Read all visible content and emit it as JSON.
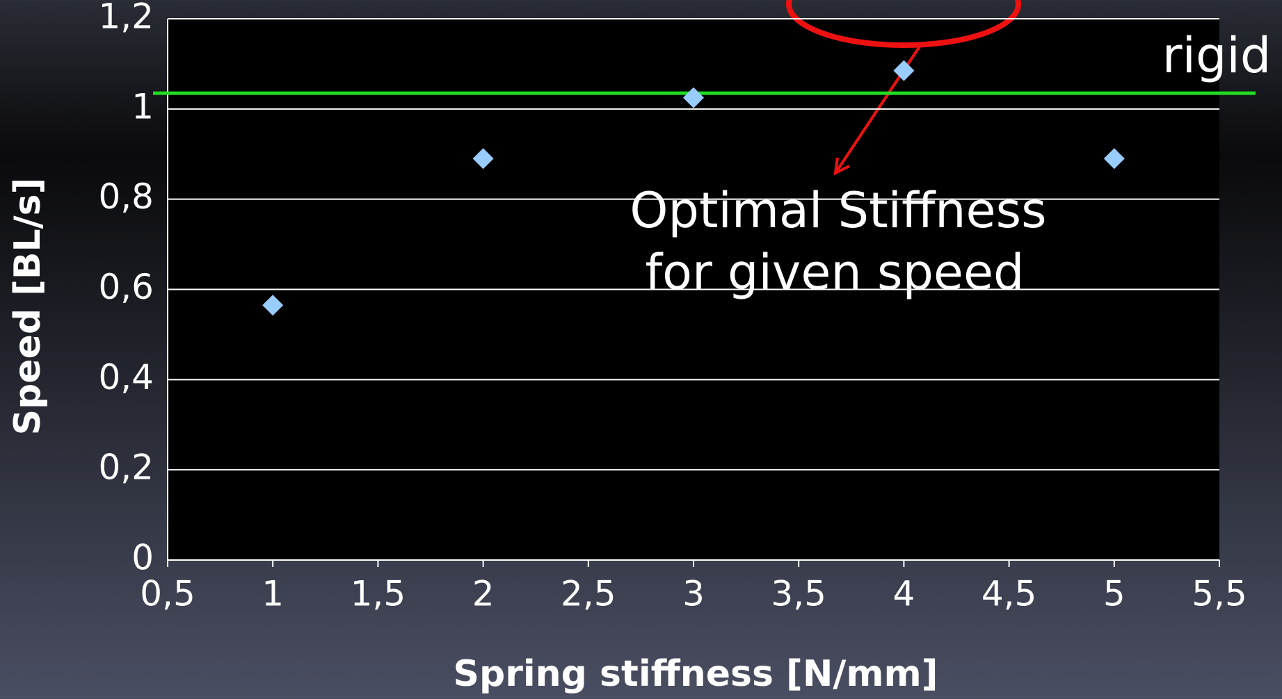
{
  "chart_data": {
    "type": "scatter",
    "xlabel": "Spring stiffness [N/mm]",
    "ylabel": "Speed [BL/s]",
    "x": [
      1,
      2,
      3,
      4,
      5
    ],
    "values": [
      0.565,
      0.89,
      1.025,
      1.085,
      0.89
    ],
    "color": "#99ccff",
    "xlim": [
      0.5,
      5.5
    ],
    "xticks": [
      {
        "value": 0.5,
        "label": "0,5"
      },
      1,
      {
        "value": 1.5,
        "label": "1,5"
      },
      2,
      {
        "value": 2.5,
        "label": "2,5"
      },
      3,
      {
        "value": 3.5,
        "label": "3,5"
      },
      4,
      {
        "value": 4.5,
        "label": "4,5"
      },
      5,
      {
        "value": 5.5,
        "label": "5,5"
      }
    ],
    "ylim": [
      0,
      1.2
    ],
    "yticks": [
      0,
      {
        "value": 0.2,
        "label": "0,2"
      },
      {
        "value": 0.4,
        "label": "0,4"
      },
      {
        "value": 0.6,
        "label": "0,6"
      },
      {
        "value": 0.8,
        "label": "0,8"
      },
      1,
      {
        "value": 1.2,
        "label": "1,2"
      }
    ],
    "grid": true,
    "reference_line": {
      "value": 1.035,
      "label": "rigid",
      "color": "#22dd22"
    },
    "annotation": [
      "Optimal Stiffness",
      "for given speed"
    ]
  }
}
